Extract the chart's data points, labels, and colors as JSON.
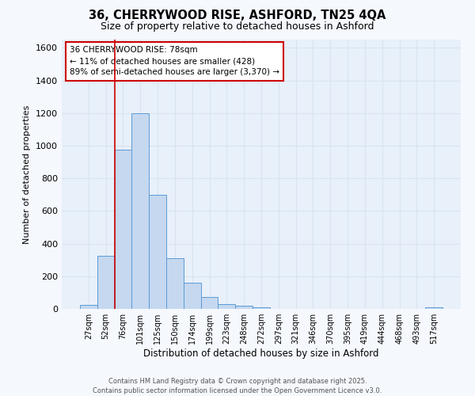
{
  "title1": "36, CHERRYWOOD RISE, ASHFORD, TN25 4QA",
  "title2": "Size of property relative to detached houses in Ashford",
  "xlabel": "Distribution of detached houses by size in Ashford",
  "ylabel": "Number of detached properties",
  "bar_labels": [
    "27sqm",
    "52sqm",
    "76sqm",
    "101sqm",
    "125sqm",
    "150sqm",
    "174sqm",
    "199sqm",
    "223sqm",
    "248sqm",
    "272sqm",
    "297sqm",
    "321sqm",
    "346sqm",
    "370sqm",
    "395sqm",
    "419sqm",
    "444sqm",
    "468sqm",
    "493sqm",
    "517sqm"
  ],
  "bar_values": [
    25,
    325,
    975,
    1200,
    700,
    310,
    160,
    75,
    30,
    20,
    12,
    0,
    0,
    0,
    0,
    0,
    0,
    0,
    0,
    0,
    12
  ],
  "bar_color": "#c5d8f0",
  "bar_edge_color": "#5b9bd5",
  "red_line_index": 2,
  "red_line_color": "#cc0000",
  "ylim": [
    0,
    1650
  ],
  "yticks": [
    0,
    200,
    400,
    600,
    800,
    1000,
    1200,
    1400,
    1600
  ],
  "annotation_text": "36 CHERRYWOOD RISE: 78sqm\n← 11% of detached houses are smaller (428)\n89% of semi-detached houses are larger (3,370) →",
  "annotation_box_color": "#ffffff",
  "annotation_box_edge": "#cc0000",
  "footer1": "Contains HM Land Registry data © Crown copyright and database right 2025.",
  "footer2": "Contains public sector information licensed under the Open Government Licence v3.0.",
  "bg_color": "#f5f8fd",
  "grid_color": "#d8e4f0",
  "plot_bg_color": "#e8f0fa"
}
